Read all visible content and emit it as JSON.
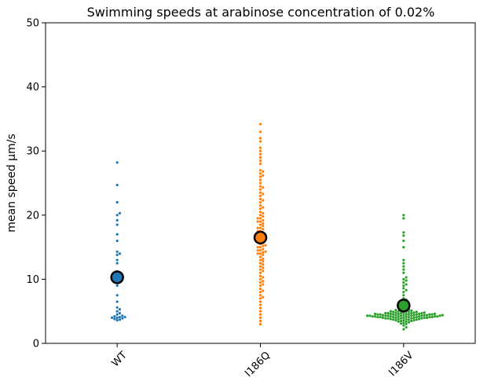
{
  "chart_data": {
    "type": "scatter",
    "subtype": "swarm",
    "title": "Swimming speeds at arabinose concentration of 0.02%",
    "xlabel": "",
    "ylabel": "mean speed μm/s",
    "ylim": [
      0,
      50
    ],
    "yticks": [
      0,
      10,
      20,
      30,
      40,
      50
    ],
    "categories": [
      "WT",
      "I186Q",
      "I186V"
    ],
    "grid": false,
    "legend": "none",
    "series": [
      {
        "category": "WT",
        "color": "#1f77b4",
        "mean": 10.3,
        "values": [
          3.6,
          3.7,
          3.8,
          3.9,
          4.0,
          4.0,
          4.1,
          4.1,
          4.2,
          4.3,
          4.5,
          4.7,
          5.0,
          5.3,
          5.6,
          6.5,
          7.5,
          9.0,
          9.5,
          10.0,
          10.5,
          11.2,
          12.5,
          13.0,
          13.8,
          14.0,
          14.3,
          16.0,
          17.0,
          18.5,
          19.2,
          20.0,
          20.3,
          22.0,
          24.7,
          28.2
        ]
      },
      {
        "category": "I186Q",
        "color": "#ff7f0e",
        "mean": 16.5,
        "values": [
          3.0,
          3.5,
          4.0,
          4.5,
          5.0,
          5.5,
          6.0,
          6.5,
          7.0,
          7.2,
          7.5,
          8.0,
          8.2,
          8.5,
          9.0,
          9.2,
          9.5,
          9.7,
          10.0,
          10.3,
          10.5,
          11.0,
          11.3,
          11.5,
          11.8,
          12.0,
          12.3,
          12.5,
          12.8,
          13.0,
          13.2,
          13.5,
          13.8,
          14.0,
          14.0,
          14.2,
          14.3,
          14.5,
          14.5,
          14.7,
          15.0,
          15.0,
          15.2,
          15.3,
          15.5,
          15.7,
          16.0,
          16.0,
          16.2,
          16.5,
          16.7,
          17.0,
          17.0,
          17.2,
          17.5,
          17.5,
          17.8,
          18.0,
          18.0,
          18.3,
          18.5,
          18.7,
          19.0,
          19.0,
          19.2,
          19.5,
          19.5,
          19.8,
          20.0,
          20.3,
          20.5,
          21.0,
          21.2,
          21.5,
          22.0,
          22.3,
          22.5,
          23.0,
          23.3,
          23.5,
          24.0,
          24.3,
          24.5,
          25.0,
          25.5,
          26.0,
          26.2,
          26.5,
          26.8,
          27.0,
          28.0,
          28.5,
          29.0,
          29.5,
          30.0,
          30.5,
          31.5,
          32.0,
          33.0,
          34.2
        ]
      },
      {
        "category": "I186V",
        "color": "#2ca02c",
        "mean": 5.9,
        "values": [
          2.2,
          2.5,
          2.8,
          3.0,
          3.1,
          3.2,
          3.3,
          3.4,
          3.4,
          3.5,
          3.5,
          3.6,
          3.6,
          3.6,
          3.7,
          3.7,
          3.7,
          3.8,
          3.8,
          3.8,
          3.8,
          3.9,
          3.9,
          3.9,
          3.9,
          3.9,
          4.0,
          4.0,
          4.0,
          4.0,
          4.0,
          4.0,
          4.1,
          4.1,
          4.1,
          4.1,
          4.1,
          4.1,
          4.1,
          4.2,
          4.2,
          4.2,
          4.2,
          4.2,
          4.2,
          4.2,
          4.2,
          4.3,
          4.3,
          4.3,
          4.3,
          4.3,
          4.3,
          4.3,
          4.3,
          4.4,
          4.4,
          4.4,
          4.4,
          4.4,
          4.4,
          4.4,
          4.5,
          4.5,
          4.5,
          4.5,
          4.5,
          4.5,
          4.5,
          4.6,
          4.6,
          4.6,
          4.6,
          4.6,
          4.6,
          4.7,
          4.7,
          4.7,
          4.7,
          4.7,
          4.8,
          4.8,
          4.8,
          4.8,
          4.9,
          4.9,
          4.9,
          5.0,
          5.0,
          5.0,
          5.1,
          5.1,
          5.2,
          5.2,
          5.3,
          5.4,
          5.5,
          5.6,
          5.8,
          6.0,
          6.2,
          6.5,
          6.8,
          7.0,
          7.5,
          8.0,
          8.3,
          8.6,
          9.0,
          9.2,
          9.5,
          9.8,
          10.0,
          10.3,
          11.0,
          11.5,
          12.0,
          12.5,
          13.0,
          15.0,
          16.0,
          16.8,
          17.3,
          19.5,
          20.0
        ]
      }
    ]
  }
}
